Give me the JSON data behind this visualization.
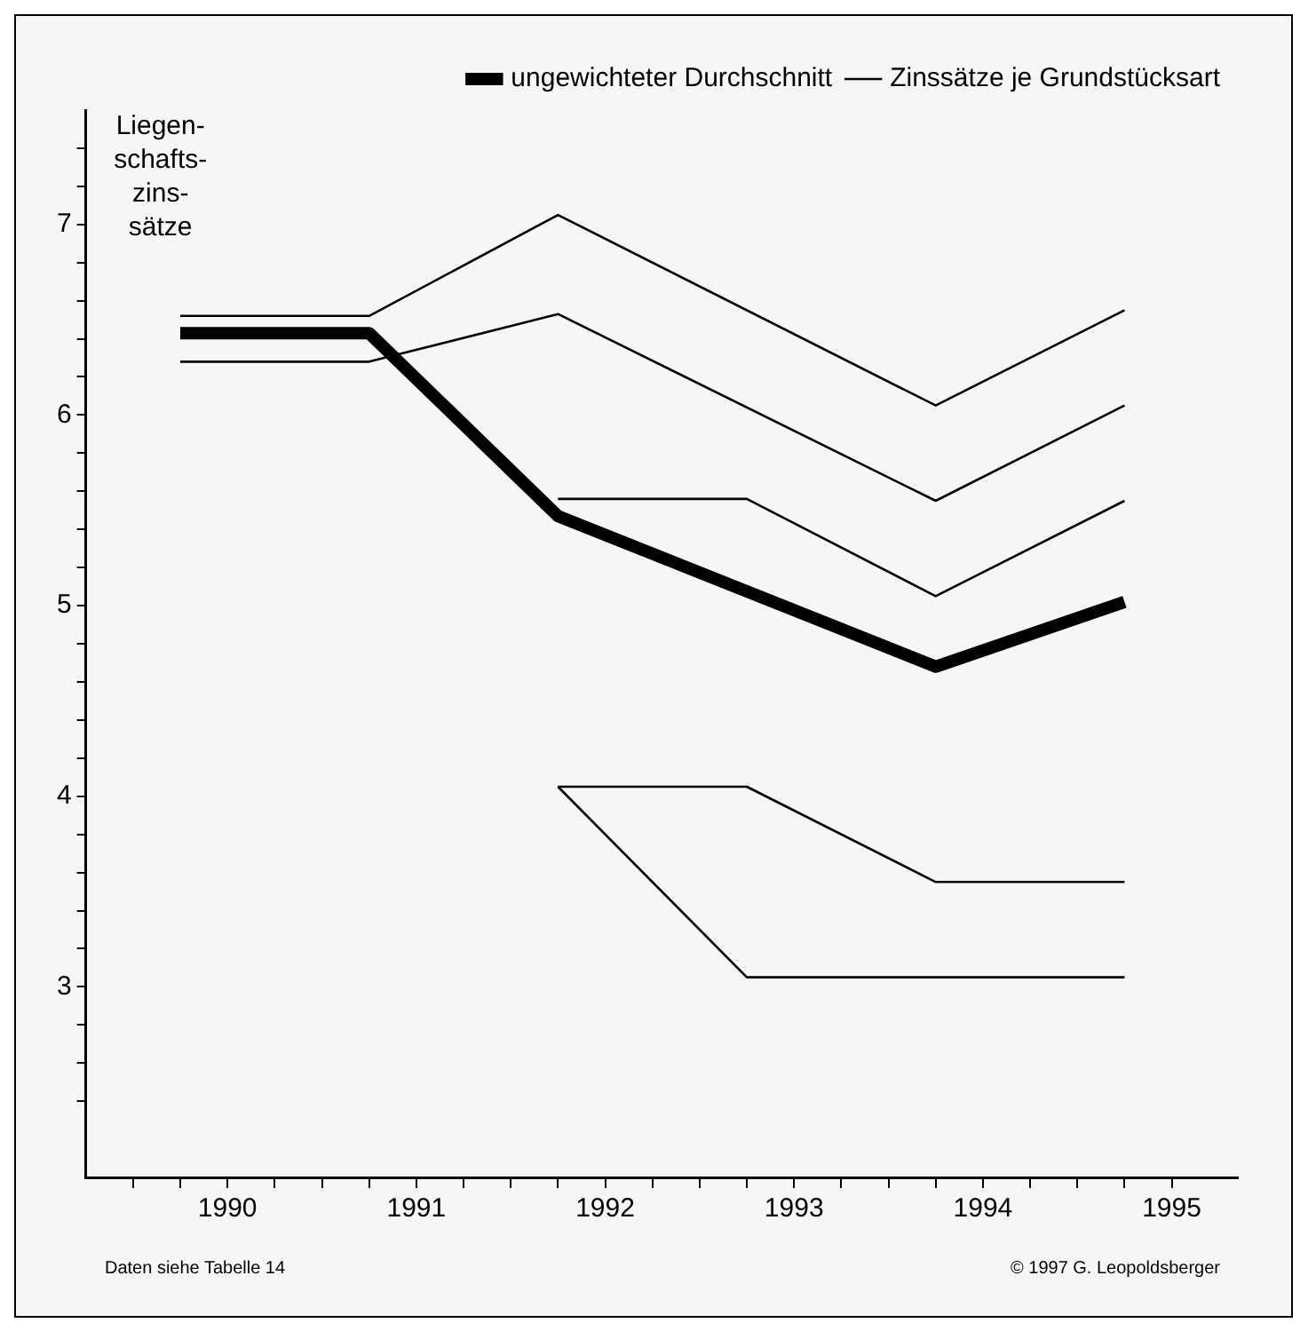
{
  "chart_data": {
    "type": "line",
    "ylabel": "Liegen-\nschafts-\nzins-\nsätze",
    "xlim": [
      1989.25,
      1995.35
    ],
    "ylim": [
      2,
      7.6
    ],
    "xticks": [
      {
        "value": 1989.5,
        "label": null
      },
      {
        "value": 1989.75,
        "label": null
      },
      1990,
      {
        "value": 1990.25,
        "label": null
      },
      {
        "value": 1990.5,
        "label": null
      },
      {
        "value": 1990.75,
        "label": null
      },
      1991,
      {
        "value": 1991.25,
        "label": null
      },
      {
        "value": 1991.5,
        "label": null
      },
      {
        "value": 1991.75,
        "label": null
      },
      1992,
      {
        "value": 1992.25,
        "label": null
      },
      {
        "value": 1992.5,
        "label": null
      },
      {
        "value": 1992.75,
        "label": null
      },
      1993,
      {
        "value": 1993.25,
        "label": null
      },
      {
        "value": 1993.5,
        "label": null
      },
      {
        "value": 1993.75,
        "label": null
      },
      1994,
      {
        "value": 1994.25,
        "label": null
      },
      {
        "value": 1994.5,
        "label": null
      },
      {
        "value": 1994.75,
        "label": null
      },
      1995
    ],
    "yticks": [
      {
        "value": 2.4,
        "label": null
      },
      {
        "value": 2.6,
        "label": null
      },
      {
        "value": 2.8,
        "label": null
      },
      3,
      {
        "value": 3.2,
        "label": null
      },
      {
        "value": 3.4,
        "label": null
      },
      {
        "value": 3.6,
        "label": null
      },
      {
        "value": 3.8,
        "label": null
      },
      4,
      {
        "value": 4.2,
        "label": null
      },
      {
        "value": 4.4,
        "label": null
      },
      {
        "value": 4.6,
        "label": null
      },
      {
        "value": 4.8,
        "label": null
      },
      5,
      {
        "value": 5.2,
        "label": null
      },
      {
        "value": 5.4,
        "label": null
      },
      {
        "value": 5.6,
        "label": null
      },
      {
        "value": 5.8,
        "label": null
      },
      6,
      {
        "value": 6.2,
        "label": null
      },
      {
        "value": 6.4,
        "label": null
      },
      {
        "value": 6.6,
        "label": null
      },
      {
        "value": 6.8,
        "label": null
      },
      7,
      {
        "value": 7.2,
        "label": null
      },
      {
        "value": 7.4,
        "label": null
      }
    ],
    "series": [
      {
        "name": "ungewichteter Durchschnitt",
        "color": "#000000",
        "x": [
          1989.75,
          1990.75,
          1991.75,
          1993.75,
          1994.75
        ],
        "values": [
          6.43,
          6.43,
          5.47,
          4.68,
          5.02
        ]
      },
      {
        "name": "Zinssätze je Grundstücksart",
        "color": "#000000",
        "x": [
          1989.75,
          1990.75,
          1991.75,
          1993.75,
          1994.75
        ],
        "values": [
          6.52,
          6.52,
          7.05,
          6.05,
          6.55
        ]
      },
      {
        "color": "#000000",
        "x": [
          1989.75,
          1990.75,
          1991.75,
          1993.75,
          1994.75
        ],
        "values": [
          6.28,
          6.28,
          6.53,
          5.55,
          6.05
        ]
      },
      {
        "color": "#000000",
        "x": [
          1991.75,
          1992.75,
          1993.75,
          1994.75
        ],
        "values": [
          5.56,
          5.56,
          5.05,
          5.55
        ]
      },
      {
        "color": "#000000",
        "x": [
          1991.75,
          1992.75,
          1993.75,
          1994.75
        ],
        "values": [
          4.05,
          4.05,
          3.55,
          3.55
        ]
      },
      {
        "color": "#000000",
        "x": [
          1991.75,
          1992.75,
          1994.75
        ],
        "values": [
          4.05,
          3.05,
          3.05
        ]
      }
    ],
    "grid": false,
    "legend": "top",
    "marker": "none",
    "line_style": "solid",
    "annotations": [
      "Daten siehe Tabelle 14",
      "© 1997 G. Leopoldsberger"
    ]
  }
}
